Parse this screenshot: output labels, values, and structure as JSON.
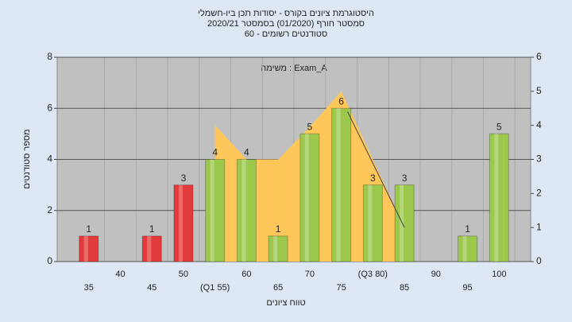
{
  "chart_data": {
    "type": "bar",
    "title": "היסטוגרמת ציונים בקורס - יסודות תכן ביו-חשמלי",
    "subtitle": "סמסטר חורף (01/2020) בסמסטר 2020/21",
    "subtitle2": "סטודנטים רשומים - 60",
    "annotation": "משימה : Exam_A",
    "ylabel": "מספר סטודנטים",
    "xlabel": "טווח ציונים",
    "categories": [
      "35",
      "40",
      "45",
      "50",
      "(Q1 55)",
      "60",
      "65",
      "70",
      "75",
      "(Q3 80)",
      "85",
      "90",
      "95",
      "100"
    ],
    "values": [
      1,
      0,
      1,
      3,
      4,
      4,
      1,
      5,
      6,
      3,
      3,
      0,
      1,
      5
    ],
    "value_labels": [
      "1",
      null,
      "1",
      "3",
      "4",
      "4",
      "1",
      "5",
      "6",
      "3",
      "3",
      null,
      "1",
      "5"
    ],
    "colors": [
      "#e23a3a",
      "#e23a3a",
      "#e23a3a",
      "#e23a3a",
      "#9cc84e",
      "#9cc84e",
      "#9cc84e",
      "#9cc84e",
      "#9cc84e",
      "#9cc84e",
      "#9cc84e",
      "#9cc84e",
      "#9cc84e",
      "#9cc84e"
    ],
    "ylim": [
      0,
      8
    ],
    "yticks": [
      0,
      2,
      4,
      6,
      8
    ],
    "y2lim": [
      0,
      6
    ],
    "y2ticks": [
      0,
      1,
      2,
      3,
      4,
      5,
      6
    ],
    "area": {
      "axis": "y2",
      "color": "#ffc65a",
      "x": [
        55,
        60,
        65,
        70,
        75,
        80,
        85
      ],
      "values": [
        4.0,
        3.0,
        3.0,
        3.95,
        5.0,
        3.0,
        1.0
      ]
    },
    "line": {
      "axis": "y2",
      "color": "#404040",
      "x": [
        76,
        85
      ],
      "values": [
        4.4,
        1.0
      ]
    },
    "grid": true
  }
}
